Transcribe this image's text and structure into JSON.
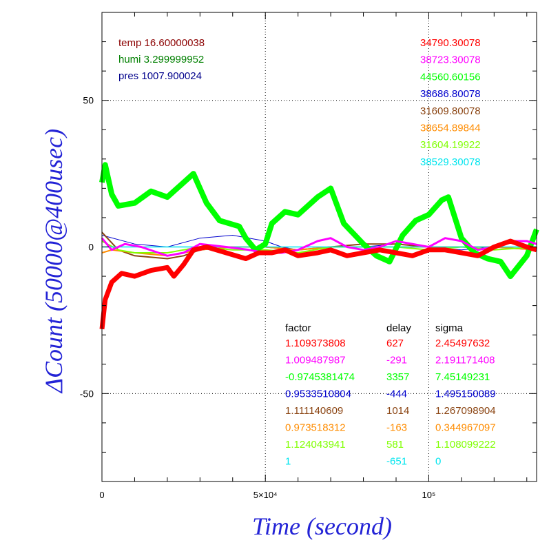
{
  "chart_data": {
    "type": "line",
    "xlabel": "Time (second)",
    "ylabel": "ΔCount (50000@400usec)",
    "xlim": [
      0,
      133000
    ],
    "ylim": [
      -80,
      80
    ],
    "grid": true,
    "x_ticks": [
      {
        "value": 0,
        "label": "0"
      },
      {
        "value": 50000,
        "label": "5×10⁴"
      },
      {
        "value": 100000,
        "label": "10⁵"
      }
    ],
    "y_ticks": [
      {
        "value": 50,
        "label": "50"
      },
      {
        "value": 0,
        "label": "0"
      },
      {
        "value": -50,
        "label": "-50"
      }
    ],
    "env": [
      {
        "label": "temp 16.60000038",
        "color": "#8b0000"
      },
      {
        "label": "humi 3.299999952",
        "color": "#008000"
      },
      {
        "label": "pres 1007.900024",
        "color": "#00008b"
      }
    ],
    "series": [
      {
        "name": "34790.30078",
        "color": "#ff0000",
        "factor": "1.109373808",
        "delay": "627",
        "sigma": "2.45497632",
        "x": [
          0,
          1000,
          3000,
          6000,
          10000,
          15000,
          20000,
          22000,
          25000,
          28000,
          32000,
          38000,
          44000,
          48000,
          52000,
          56000,
          60000,
          66000,
          70000,
          75000,
          80000,
          85000,
          90000,
          95000,
          100000,
          105000,
          110000,
          115000,
          120000,
          125000,
          130000,
          133000
        ],
        "values": [
          -28,
          -18,
          -12,
          -9,
          -10,
          -8,
          -7,
          -10,
          -6,
          -1,
          0,
          -2,
          -4,
          -2,
          -2,
          -1,
          -3,
          -2,
          -1,
          -3,
          -2,
          -1,
          -2,
          -3,
          -1,
          -1,
          -2,
          -3,
          0,
          2,
          0,
          -1
        ]
      },
      {
        "name": "38723.30078",
        "color": "#ff00ff",
        "factor": "1.009487987",
        "delay": "-291",
        "sigma": "2.191171408",
        "x": [
          0,
          3000,
          7000,
          12000,
          20000,
          25000,
          30000,
          38000,
          45000,
          50000,
          55000,
          60000,
          66000,
          70000,
          75000,
          80000,
          85000,
          90000,
          95000,
          100000,
          105000,
          110000,
          115000,
          120000,
          125000,
          130000,
          133000
        ],
        "values": [
          3,
          -1,
          1,
          0,
          -3,
          -2,
          1,
          0,
          -1,
          -2,
          -2,
          -1,
          2,
          3,
          0,
          -1,
          0,
          2,
          1,
          0,
          3,
          2,
          -1,
          0,
          2,
          2,
          1
        ]
      },
      {
        "name": "44560.60156",
        "color": "#00ff00",
        "factor": "-0.9745381474",
        "delay": "3357",
        "sigma": "7.45149231",
        "x": [
          0,
          1000,
          3000,
          5000,
          10000,
          15000,
          20000,
          24000,
          28000,
          32000,
          36000,
          42000,
          44000,
          47000,
          50000,
          52000,
          56000,
          60000,
          66000,
          70000,
          74000,
          80000,
          84000,
          88000,
          92000,
          96000,
          100000,
          104000,
          106000,
          110000,
          114000,
          118000,
          122000,
          125000,
          130000,
          133000
        ],
        "values": [
          22,
          28,
          18,
          14,
          15,
          19,
          17,
          21,
          25,
          15,
          9,
          7,
          3,
          -1,
          1,
          8,
          12,
          11,
          17,
          20,
          8,
          1,
          -3,
          -5,
          4,
          9,
          11,
          16,
          17,
          3,
          -2,
          -4,
          -5,
          -10,
          -3,
          6
        ]
      },
      {
        "name": "38686.80078",
        "color": "#0000cd",
        "factor": "0.9533510804",
        "delay": "-444",
        "sigma": "1.495150089",
        "x": [
          0,
          10000,
          20000,
          30000,
          40000,
          45000,
          50000,
          55000,
          60000,
          70000,
          80000,
          90000,
          100000,
          110000,
          120000,
          133000
        ],
        "values": [
          4,
          1,
          0,
          3,
          4,
          3,
          2,
          0,
          -1,
          0,
          0,
          1,
          0,
          -1,
          0,
          0
        ]
      },
      {
        "name": "31609.80078",
        "color": "#8b4513",
        "factor": "1.111140609",
        "delay": "1014",
        "sigma": "1.267098904",
        "x": [
          0,
          5000,
          10000,
          20000,
          25000,
          30000,
          40000,
          50000,
          60000,
          70000,
          80000,
          90000,
          100000,
          110000,
          120000,
          133000
        ],
        "values": [
          5,
          -1,
          -3,
          -4,
          -3,
          -1,
          0,
          0,
          -1,
          0,
          1,
          1,
          0,
          0,
          0,
          -1
        ]
      },
      {
        "name": "38654.89844",
        "color": "#ff8c00",
        "factor": "0.973518312",
        "delay": "-163",
        "sigma": "0.344967097",
        "x": [
          0,
          3000,
          10000,
          20000,
          30000,
          40000,
          50000,
          60000,
          70000,
          80000,
          90000,
          100000,
          110000,
          120000,
          133000
        ],
        "values": [
          -2,
          -1,
          -2,
          -3,
          -1,
          0,
          0,
          -1,
          0,
          0,
          0,
          0,
          0,
          0,
          -1
        ]
      },
      {
        "name": "31604.19922",
        "color": "#7fff00",
        "factor": "1.124043941",
        "delay": "581",
        "sigma": "1.108099222",
        "x": [
          0,
          5000,
          10000,
          20000,
          30000,
          40000,
          50000,
          60000,
          70000,
          80000,
          90000,
          100000,
          110000,
          120000,
          133000
        ],
        "values": [
          2,
          -1,
          -2,
          -2,
          0,
          -1,
          -1,
          -2,
          0,
          0,
          0,
          -1,
          0,
          -1,
          0
        ]
      },
      {
        "name": "38529.30078",
        "color": "#00e5ee",
        "factor": "1",
        "delay": "-651",
        "sigma": "0",
        "x": [
          0,
          133000
        ],
        "values": [
          0,
          0
        ]
      }
    ],
    "table_headers": {
      "factor": "factor",
      "delay": "delay",
      "sigma": "sigma"
    }
  }
}
